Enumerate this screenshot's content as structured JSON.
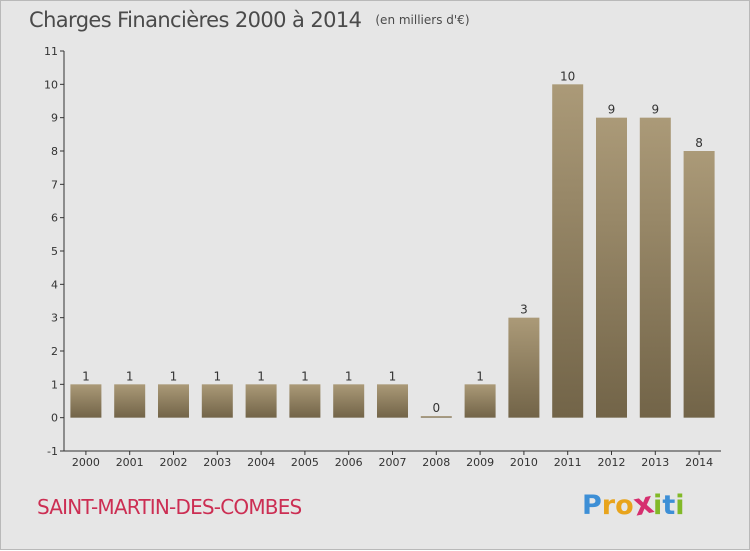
{
  "header": {
    "title": "Charges Financières 2000 à 2014",
    "unit": "(en milliers d'€)"
  },
  "footer": {
    "commune": "SAINT-MARTIN-DES-COMBES",
    "logo_letters": [
      {
        "ch": "P",
        "color": "#3d8fd6"
      },
      {
        "ch": "r",
        "color": "#e8a41c"
      },
      {
        "ch": "o",
        "color": "#e8a41c"
      },
      {
        "ch": "x",
        "color": "#d62f6f"
      },
      {
        "ch": "i",
        "color": "#82b928"
      },
      {
        "ch": "t",
        "color": "#3d8fd6"
      },
      {
        "ch": "i",
        "color": "#82b928"
      }
    ]
  },
  "colors": {
    "bar_light": "#ab9a78",
    "bar_dark": "#726448",
    "axis": "#333333",
    "label": "#333333"
  },
  "chart_data": {
    "type": "bar",
    "title": "Charges Financières 2000 à 2014",
    "subtitle": "(en milliers d'€)",
    "categories": [
      "2000",
      "2001",
      "2002",
      "2003",
      "2004",
      "2005",
      "2006",
      "2007",
      "2008",
      "2009",
      "2010",
      "2011",
      "2012",
      "2013",
      "2014"
    ],
    "values": [
      1,
      1,
      1,
      1,
      1,
      1,
      1,
      1,
      0,
      1,
      3,
      10,
      9,
      9,
      8
    ],
    "data_labels": [
      "1",
      "1",
      "1",
      "1",
      "1",
      "1",
      "1",
      "1",
      "0",
      "1",
      "3",
      "10",
      "9",
      "9",
      "8"
    ],
    "y_ticks": [
      "-1",
      "0",
      "1",
      "2",
      "3",
      "4",
      "5",
      "6",
      "7",
      "8",
      "9",
      "10",
      "11"
    ],
    "ylim": [
      -1,
      11
    ],
    "grid": false,
    "xlabel": "",
    "ylabel": ""
  }
}
